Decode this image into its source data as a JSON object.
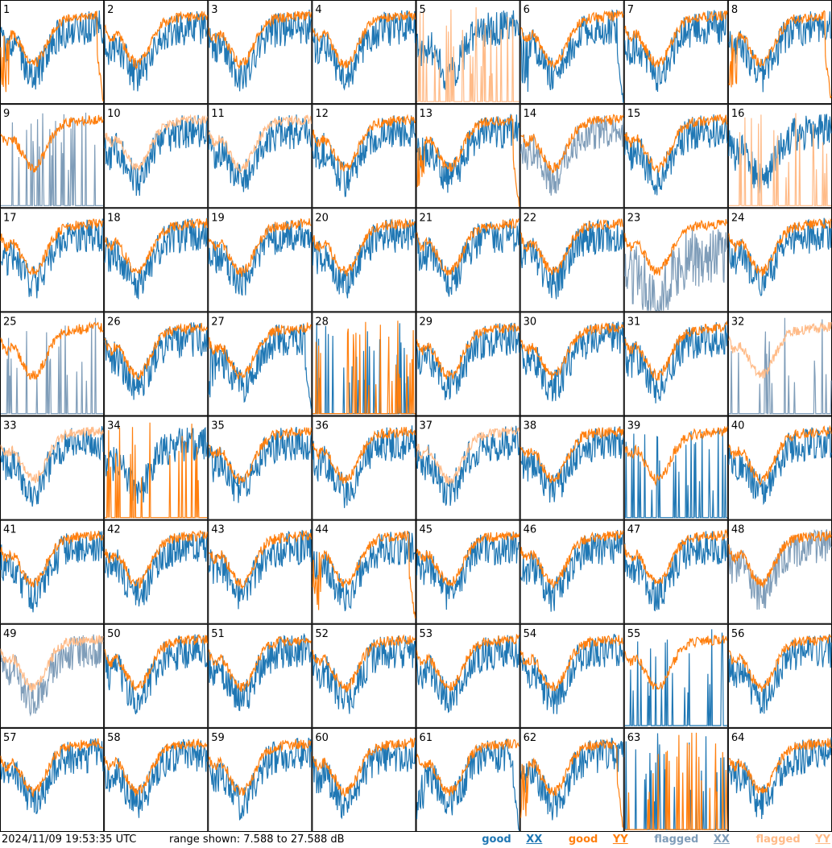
{
  "footer": {
    "timestamp": "2024/11/09 19:53:35 UTC",
    "range_text": "range shown: 7.588 to 27.588 dB",
    "legend": {
      "good_prefix": "good",
      "good_xx": "XX",
      "good_yy": "YY",
      "flagged_prefix": "flagged",
      "flagged_xx": "XX",
      "flagged_yy": "YY"
    }
  },
  "colors": {
    "good_xx": "#1f77b4",
    "good_yy": "#ff7f0e",
    "flagged_xx": "#7f9db9",
    "flagged_yy": "#ffbb88"
  },
  "chart_data": {
    "type": "line",
    "grid": {
      "rows": 8,
      "cols": 8
    },
    "y_range_db": [
      7.588,
      27.588
    ],
    "panels": [
      {
        "label": "1",
        "xx": "good",
        "yy": "good",
        "xx_shape": "normal",
        "yy_shape": "dropout"
      },
      {
        "label": "2",
        "xx": "good",
        "yy": "good",
        "xx_shape": "normal",
        "yy_shape": "normal"
      },
      {
        "label": "3",
        "xx": "good",
        "yy": "good",
        "xx_shape": "normal",
        "yy_shape": "normal"
      },
      {
        "label": "4",
        "xx": "good",
        "yy": "good",
        "xx_shape": "normal",
        "yy_shape": "normal"
      },
      {
        "label": "5",
        "xx": "good",
        "yy": "flagged",
        "xx_shape": "normal",
        "yy_shape": "spikes"
      },
      {
        "label": "6",
        "xx": "good",
        "yy": "good",
        "xx_shape": "dropout",
        "yy_shape": "normal"
      },
      {
        "label": "7",
        "xx": "good",
        "yy": "good",
        "xx_shape": "normal",
        "yy_shape": "normal"
      },
      {
        "label": "8",
        "xx": "good",
        "yy": "good",
        "xx_shape": "normal",
        "yy_shape": "dropout"
      },
      {
        "label": "9",
        "xx": "flagged",
        "yy": "good",
        "xx_shape": "spikes",
        "yy_shape": "normal"
      },
      {
        "label": "10",
        "xx": "good",
        "yy": "flagged",
        "xx_shape": "normal",
        "yy_shape": "normal"
      },
      {
        "label": "11",
        "xx": "good",
        "yy": "flagged",
        "xx_shape": "normal",
        "yy_shape": "normal"
      },
      {
        "label": "12",
        "xx": "good",
        "yy": "good",
        "xx_shape": "normal",
        "yy_shape": "normal"
      },
      {
        "label": "13",
        "xx": "good",
        "yy": "good",
        "xx_shape": "normal",
        "yy_shape": "dropout"
      },
      {
        "label": "14",
        "xx": "flagged",
        "yy": "good",
        "xx_shape": "normal",
        "yy_shape": "normal"
      },
      {
        "label": "15",
        "xx": "good",
        "yy": "good",
        "xx_shape": "normal",
        "yy_shape": "normal"
      },
      {
        "label": "16",
        "xx": "good",
        "yy": "flagged",
        "xx_shape": "normal",
        "yy_shape": "spikes"
      },
      {
        "label": "17",
        "xx": "good",
        "yy": "good",
        "xx_shape": "normal",
        "yy_shape": "normal"
      },
      {
        "label": "18",
        "xx": "good",
        "yy": "good",
        "xx_shape": "normal",
        "yy_shape": "normal"
      },
      {
        "label": "19",
        "xx": "good",
        "yy": "good",
        "xx_shape": "normal",
        "yy_shape": "normal"
      },
      {
        "label": "20",
        "xx": "good",
        "yy": "good",
        "xx_shape": "normal",
        "yy_shape": "normal"
      },
      {
        "label": "21",
        "xx": "good",
        "yy": "good",
        "xx_shape": "normal",
        "yy_shape": "normal"
      },
      {
        "label": "22",
        "xx": "good",
        "yy": "good",
        "xx_shape": "normal",
        "yy_shape": "normal"
      },
      {
        "label": "23",
        "xx": "flagged",
        "yy": "good",
        "xx_shape": "deep",
        "yy_shape": "normal"
      },
      {
        "label": "24",
        "xx": "good",
        "yy": "good",
        "xx_shape": "normal",
        "yy_shape": "normal"
      },
      {
        "label": "25",
        "xx": "flagged",
        "yy": "good",
        "xx_shape": "spikes",
        "yy_shape": "normal"
      },
      {
        "label": "26",
        "xx": "good",
        "yy": "good",
        "xx_shape": "normal",
        "yy_shape": "normal"
      },
      {
        "label": "27",
        "xx": "good",
        "yy": "good",
        "xx_shape": "dropout",
        "yy_shape": "normal"
      },
      {
        "label": "28",
        "xx": "good",
        "yy": "good",
        "xx_shape": "spikes",
        "yy_shape": "spikes"
      },
      {
        "label": "29",
        "xx": "good",
        "yy": "good",
        "xx_shape": "normal",
        "yy_shape": "normal"
      },
      {
        "label": "30",
        "xx": "good",
        "yy": "good",
        "xx_shape": "normal",
        "yy_shape": "normal"
      },
      {
        "label": "31",
        "xx": "good",
        "yy": "good",
        "xx_shape": "normal",
        "yy_shape": "normal"
      },
      {
        "label": "32",
        "xx": "flagged",
        "yy": "flagged",
        "xx_shape": "spikes",
        "yy_shape": "normal"
      },
      {
        "label": "33",
        "xx": "good",
        "yy": "flagged",
        "xx_shape": "normal",
        "yy_shape": "normal"
      },
      {
        "label": "34",
        "xx": "good",
        "yy": "good",
        "xx_shape": "normal",
        "yy_shape": "spikes"
      },
      {
        "label": "35",
        "xx": "good",
        "yy": "good",
        "xx_shape": "normal",
        "yy_shape": "normal"
      },
      {
        "label": "36",
        "xx": "good",
        "yy": "good",
        "xx_shape": "normal",
        "yy_shape": "normal"
      },
      {
        "label": "37",
        "xx": "good",
        "yy": "flagged",
        "xx_shape": "normal",
        "yy_shape": "normal"
      },
      {
        "label": "38",
        "xx": "good",
        "yy": "good",
        "xx_shape": "normal",
        "yy_shape": "normal"
      },
      {
        "label": "39",
        "xx": "good",
        "yy": "good",
        "xx_shape": "spikes",
        "yy_shape": "normal"
      },
      {
        "label": "40",
        "xx": "good",
        "yy": "good",
        "xx_shape": "normal",
        "yy_shape": "normal"
      },
      {
        "label": "41",
        "xx": "good",
        "yy": "good",
        "xx_shape": "normal",
        "yy_shape": "normal"
      },
      {
        "label": "42",
        "xx": "good",
        "yy": "good",
        "xx_shape": "normal",
        "yy_shape": "normal"
      },
      {
        "label": "43",
        "xx": "good",
        "yy": "good",
        "xx_shape": "normal",
        "yy_shape": "normal"
      },
      {
        "label": "44",
        "xx": "good",
        "yy": "good",
        "xx_shape": "normal",
        "yy_shape": "dropout"
      },
      {
        "label": "45",
        "xx": "good",
        "yy": "good",
        "xx_shape": "normal",
        "yy_shape": "normal"
      },
      {
        "label": "46",
        "xx": "good",
        "yy": "good",
        "xx_shape": "normal",
        "yy_shape": "normal"
      },
      {
        "label": "47",
        "xx": "good",
        "yy": "good",
        "xx_shape": "normal",
        "yy_shape": "normal"
      },
      {
        "label": "48",
        "xx": "flagged",
        "yy": "good",
        "xx_shape": "normal",
        "yy_shape": "normal"
      },
      {
        "label": "49",
        "xx": "flagged",
        "yy": "flagged",
        "xx_shape": "normal",
        "yy_shape": "normal"
      },
      {
        "label": "50",
        "xx": "good",
        "yy": "good",
        "xx_shape": "normal",
        "yy_shape": "normal"
      },
      {
        "label": "51",
        "xx": "good",
        "yy": "good",
        "xx_shape": "normal",
        "yy_shape": "normal"
      },
      {
        "label": "52",
        "xx": "good",
        "yy": "good",
        "xx_shape": "normal",
        "yy_shape": "normal"
      },
      {
        "label": "53",
        "xx": "good",
        "yy": "good",
        "xx_shape": "normal",
        "yy_shape": "normal"
      },
      {
        "label": "54",
        "xx": "good",
        "yy": "good",
        "xx_shape": "normal",
        "yy_shape": "normal"
      },
      {
        "label": "55",
        "xx": "good",
        "yy": "good",
        "xx_shape": "spikes",
        "yy_shape": "normal"
      },
      {
        "label": "56",
        "xx": "good",
        "yy": "good",
        "xx_shape": "normal",
        "yy_shape": "normal"
      },
      {
        "label": "57",
        "xx": "good",
        "yy": "good",
        "xx_shape": "normal",
        "yy_shape": "normal"
      },
      {
        "label": "58",
        "xx": "good",
        "yy": "good",
        "xx_shape": "normal",
        "yy_shape": "normal"
      },
      {
        "label": "59",
        "xx": "good",
        "yy": "good",
        "xx_shape": "normal",
        "yy_shape": "normal"
      },
      {
        "label": "60",
        "xx": "good",
        "yy": "good",
        "xx_shape": "normal",
        "yy_shape": "normal"
      },
      {
        "label": "61",
        "xx": "good",
        "yy": "good",
        "xx_shape": "dropout",
        "yy_shape": "normal"
      },
      {
        "label": "62",
        "xx": "good",
        "yy": "good",
        "xx_shape": "normal",
        "yy_shape": "dropout"
      },
      {
        "label": "63",
        "xx": "good",
        "yy": "good",
        "xx_shape": "spikes",
        "yy_shape": "spikes"
      },
      {
        "label": "64",
        "xx": "good",
        "yy": "good",
        "xx_shape": "normal",
        "yy_shape": "normal"
      }
    ]
  }
}
